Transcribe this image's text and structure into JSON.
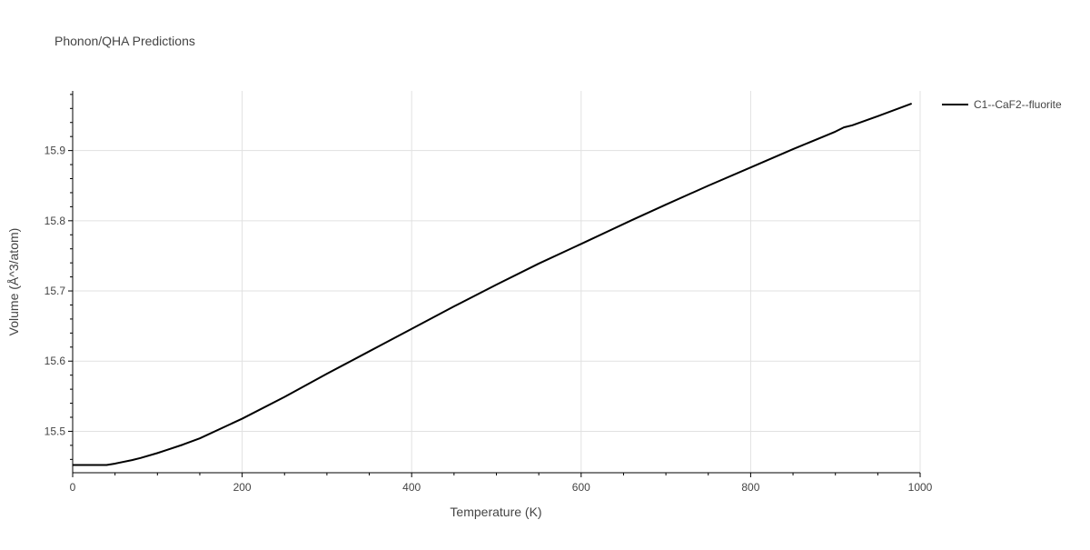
{
  "chart_data": {
    "type": "line",
    "title": "Phonon/QHA Predictions",
    "xlabel": "Temperature (K)",
    "ylabel": "Volume (Å^3/atom)",
    "xlim": [
      0,
      1000
    ],
    "ylim": [
      15.441,
      15.985
    ],
    "x_ticks": [
      0,
      200,
      400,
      600,
      800,
      1000
    ],
    "x_tick_labels": [
      "0",
      "200",
      "400",
      "600",
      "800",
      "1000"
    ],
    "y_ticks": [
      15.5,
      15.6,
      15.7,
      15.8,
      15.9
    ],
    "y_tick_labels": [
      "15.5",
      "15.6",
      "15.7",
      "15.8",
      "15.9"
    ],
    "grid": true,
    "legend_position": "top-right",
    "series": [
      {
        "name": "C1--CaF2--fluorite",
        "color": "#000000",
        "x": [
          0,
          40,
          50,
          70,
          80,
          100,
          110,
          130,
          150,
          200,
          250,
          300,
          350,
          400,
          450,
          500,
          550,
          600,
          660,
          700,
          750,
          800,
          850,
          890,
          900,
          910,
          920,
          950,
          990
        ],
        "y": [
          15.452,
          15.452,
          15.454,
          15.459,
          15.462,
          15.469,
          15.473,
          15.481,
          15.49,
          15.518,
          15.549,
          15.582,
          15.614,
          15.646,
          15.678,
          15.709,
          15.739,
          15.767,
          15.801,
          15.823,
          15.85,
          15.876,
          15.902,
          15.922,
          15.927,
          15.933,
          15.936,
          15.949,
          15.967
        ]
      }
    ]
  }
}
